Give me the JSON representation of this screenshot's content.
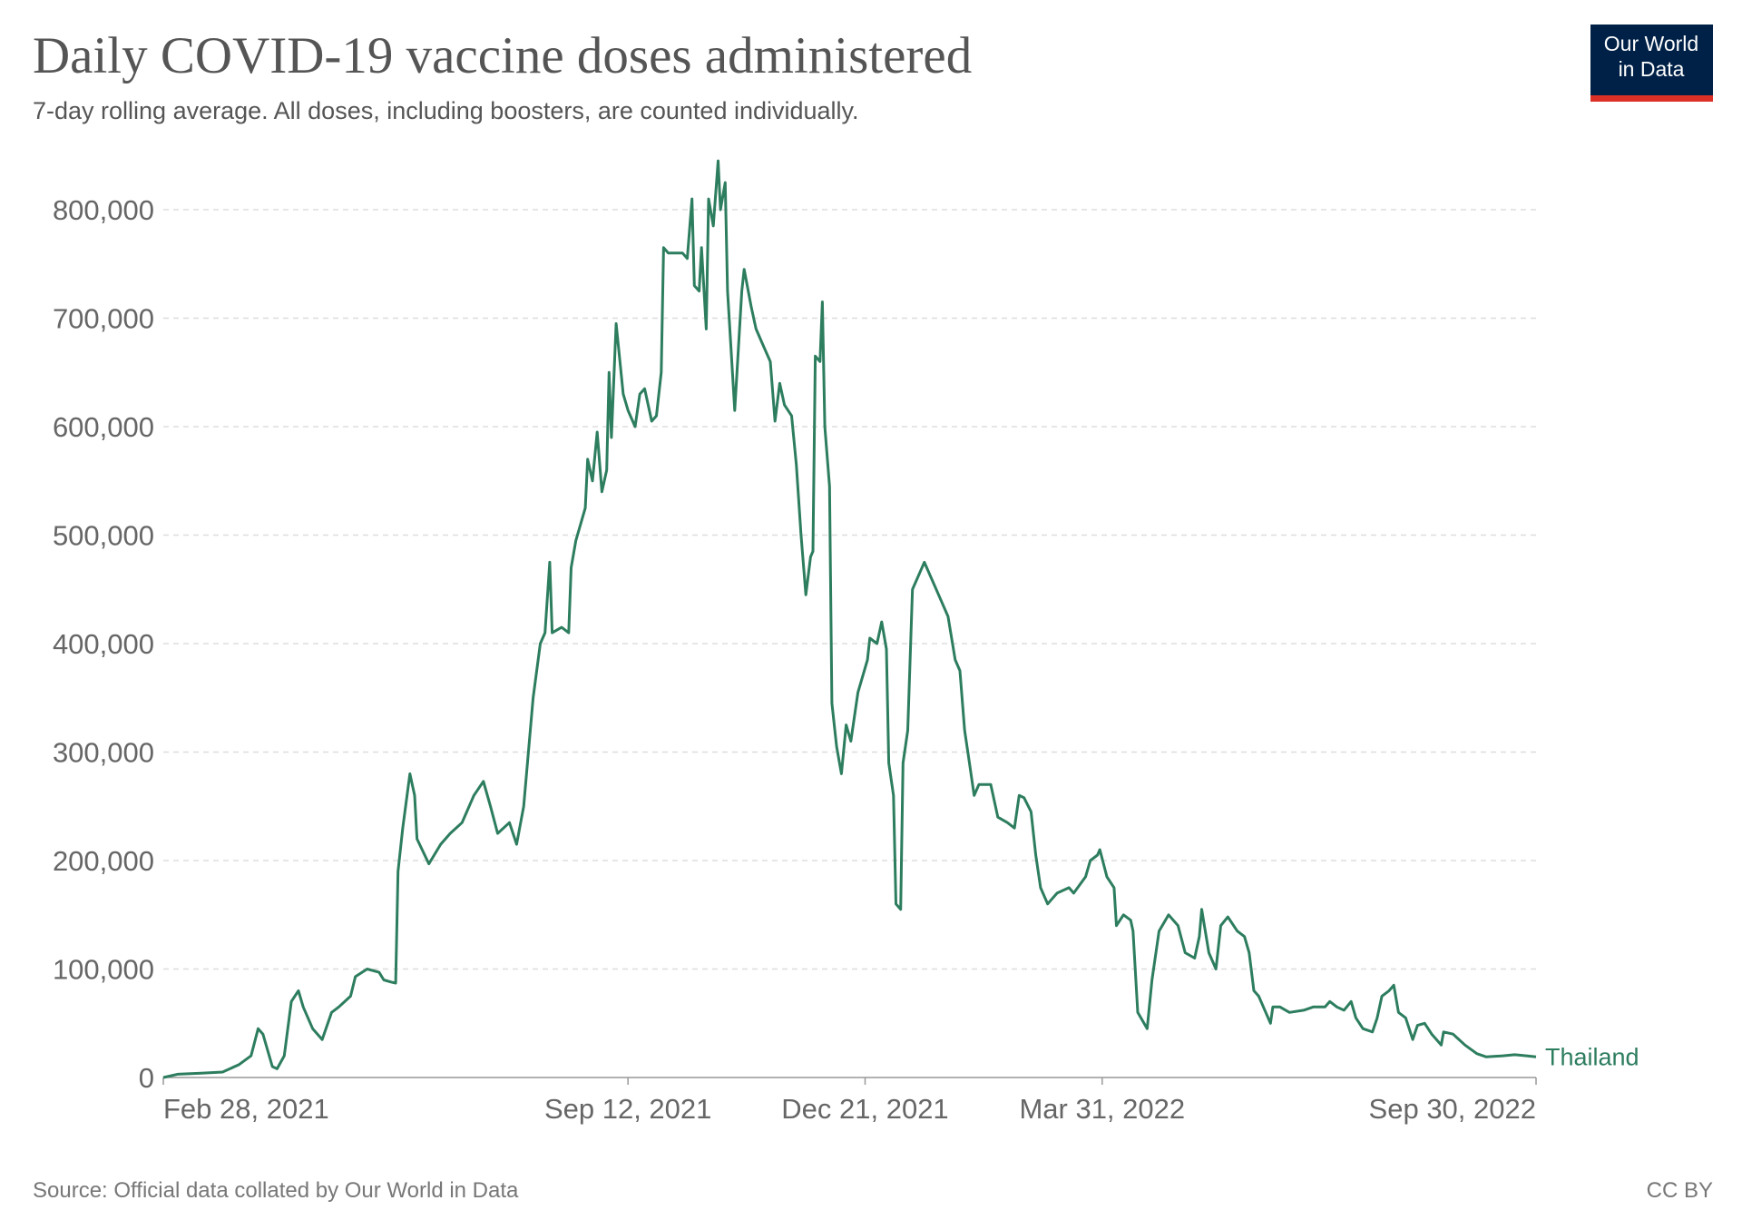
{
  "chart_data": {
    "type": "line",
    "title": "Daily COVID-19 vaccine doses administered",
    "subtitle": "7-day rolling average. All doses, including boosters, are counted individually.",
    "source": "Source: Official data collated by Our World in Data",
    "license": "CC BY",
    "logo": [
      "Our World",
      "in Data"
    ],
    "xlim": [
      "2021-02-28",
      "2022-09-30"
    ],
    "xticks": [
      {
        "value": "2021-02-28",
        "label": "Feb 28, 2021"
      },
      {
        "value": "2021-09-12",
        "label": "Sep 12, 2021"
      },
      {
        "value": "2021-12-21",
        "label": "Dec 21, 2021"
      },
      {
        "value": "2022-03-31",
        "label": "Mar 31, 2022"
      },
      {
        "value": "2022-09-30",
        "label": "Sep 30, 2022"
      }
    ],
    "ylim": [
      0,
      800000
    ],
    "yticks": [
      0,
      {
        "value": 100000,
        "label": "100,000"
      },
      {
        "value": 200000,
        "label": "200,000"
      },
      {
        "value": 300000,
        "label": "300,000"
      },
      {
        "value": 400000,
        "label": "400,000"
      },
      {
        "value": 500000,
        "label": "500,000"
      },
      {
        "value": 600000,
        "label": "600,000"
      },
      {
        "value": 700000,
        "label": "700,000"
      },
      {
        "value": 800000,
        "label": "800,000"
      }
    ],
    "grid": true,
    "x": [
      "2021-02-28",
      "2021-03-06",
      "2021-03-16",
      "2021-03-25",
      "2021-04-01",
      "2021-04-06",
      "2021-04-09",
      "2021-04-11",
      "2021-04-15",
      "2021-04-17",
      "2021-04-20",
      "2021-04-23",
      "2021-04-26",
      "2021-04-28",
      "2021-05-02",
      "2021-05-06",
      "2021-05-10",
      "2021-05-13",
      "2021-05-18",
      "2021-05-20",
      "2021-05-25",
      "2021-05-30",
      "2021-06-01",
      "2021-06-04",
      "2021-06-06",
      "2021-06-07",
      "2021-06-09",
      "2021-06-12",
      "2021-06-14",
      "2021-06-15",
      "2021-06-20",
      "2021-06-25",
      "2021-06-29",
      "2021-07-04",
      "2021-07-09",
      "2021-07-13",
      "2021-07-16",
      "2021-07-19",
      "2021-07-24",
      "2021-07-27",
      "2021-07-30",
      "2021-08-01",
      "2021-08-03",
      "2021-08-06",
      "2021-08-08",
      "2021-08-10",
      "2021-08-11",
      "2021-08-15",
      "2021-08-18",
      "2021-08-19",
      "2021-08-21",
      "2021-08-25",
      "2021-08-26",
      "2021-08-28",
      "2021-08-30",
      "2021-09-01",
      "2021-09-03",
      "2021-09-04",
      "2021-09-05",
      "2021-09-07",
      "2021-09-10",
      "2021-09-12",
      "2021-09-15",
      "2021-09-17",
      "2021-09-19",
      "2021-09-22",
      "2021-09-24",
      "2021-09-26",
      "2021-09-27",
      "2021-09-29",
      "2021-10-05",
      "2021-10-07",
      "2021-10-09",
      "2021-10-10",
      "2021-10-12",
      "2021-10-13",
      "2021-10-15",
      "2021-10-16",
      "2021-10-18",
      "2021-10-20",
      "2021-10-21",
      "2021-10-23",
      "2021-10-24",
      "2021-10-27",
      "2021-10-30",
      "2021-10-31",
      "2021-11-03",
      "2021-11-05",
      "2021-11-08",
      "2021-11-11",
      "2021-11-13",
      "2021-11-15",
      "2021-11-17",
      "2021-11-20",
      "2021-11-22",
      "2021-11-24",
      "2021-11-26",
      "2021-11-28",
      "2021-11-29",
      "2021-11-30",
      "2021-12-02",
      "2021-12-03",
      "2021-12-04",
      "2021-12-06",
      "2021-12-07",
      "2021-12-09",
      "2021-12-11",
      "2021-12-13",
      "2021-12-15",
      "2021-12-18",
      "2021-12-22",
      "2021-12-23",
      "2021-12-26",
      "2021-12-28",
      "2021-12-30",
      "2021-12-31",
      "2022-01-02",
      "2022-01-03",
      "2022-01-05",
      "2022-01-06",
      "2022-01-08",
      "2022-01-10",
      "2022-01-13",
      "2022-01-15",
      "2022-01-19",
      "2022-01-22",
      "2022-01-25",
      "2022-01-28",
      "2022-01-30",
      "2022-02-01",
      "2022-02-03",
      "2022-02-05",
      "2022-02-07",
      "2022-02-12",
      "2022-02-15",
      "2022-02-19",
      "2022-02-22",
      "2022-02-24",
      "2022-02-26",
      "2022-03-01",
      "2022-03-03",
      "2022-03-05",
      "2022-03-08",
      "2022-03-10",
      "2022-03-12",
      "2022-03-17",
      "2022-03-19",
      "2022-03-24",
      "2022-03-26",
      "2022-03-29",
      "2022-03-30",
      "2022-04-02",
      "2022-04-05",
      "2022-04-06",
      "2022-04-09",
      "2022-04-12",
      "2022-04-13",
      "2022-04-15",
      "2022-04-19",
      "2022-04-21",
      "2022-04-24",
      "2022-04-28",
      "2022-05-02",
      "2022-05-05",
      "2022-05-09",
      "2022-05-11",
      "2022-05-12",
      "2022-05-15",
      "2022-05-18",
      "2022-05-20",
      "2022-05-23",
      "2022-05-27",
      "2022-05-30",
      "2022-06-01",
      "2022-06-03",
      "2022-06-05",
      "2022-06-08",
      "2022-06-10",
      "2022-06-11",
      "2022-06-14",
      "2022-06-18",
      "2022-06-24",
      "2022-06-28",
      "2022-07-03",
      "2022-07-05",
      "2022-07-08",
      "2022-07-11",
      "2022-07-14",
      "2022-07-16",
      "2022-07-19",
      "2022-07-23",
      "2022-07-25",
      "2022-07-27",
      "2022-07-30",
      "2022-08-01",
      "2022-08-03",
      "2022-08-06",
      "2022-08-09",
      "2022-08-11",
      "2022-08-14",
      "2022-08-17",
      "2022-08-21",
      "2022-08-22",
      "2022-08-26",
      "2022-08-31",
      "2022-09-05",
      "2022-09-09",
      "2022-09-16",
      "2022-09-21",
      "2022-09-26",
      "2022-09-30"
    ],
    "series": [
      {
        "name": "Thailand",
        "color": "#2d7d5f",
        "values": [
          0,
          3000,
          4000,
          5000,
          12000,
          20000,
          45000,
          40000,
          10000,
          8000,
          20000,
          70000,
          80000,
          65000,
          45000,
          35000,
          60000,
          65000,
          75000,
          93000,
          100000,
          97000,
          90000,
          88000,
          87000,
          190000,
          230000,
          280000,
          260000,
          220000,
          197000,
          215000,
          225000,
          235000,
          260000,
          273000,
          250000,
          225000,
          235000,
          215000,
          250000,
          300000,
          350000,
          400000,
          410000,
          475000,
          410000,
          415000,
          410000,
          470000,
          495000,
          525000,
          570000,
          550000,
          595000,
          540000,
          560000,
          650000,
          590000,
          695000,
          630000,
          615000,
          600000,
          630000,
          635000,
          605000,
          610000,
          650000,
          765000,
          760000,
          760000,
          755000,
          810000,
          730000,
          725000,
          765000,
          690000,
          810000,
          785000,
          845000,
          800000,
          825000,
          725000,
          615000,
          725000,
          745000,
          710000,
          690000,
          675000,
          660000,
          605000,
          640000,
          620000,
          610000,
          565000,
          500000,
          445000,
          480000,
          485000,
          665000,
          660000,
          715000,
          600000,
          545000,
          345000,
          305000,
          280000,
          325000,
          310000,
          355000,
          385000,
          405000,
          400000,
          420000,
          395000,
          290000,
          260000,
          160000,
          155000,
          290000,
          320000,
          450000,
          465000,
          475000,
          455000,
          440000,
          425000,
          385000,
          375000,
          320000,
          290000,
          260000,
          270000,
          270000,
          240000,
          235000,
          230000,
          260000,
          258000,
          245000,
          205000,
          175000,
          160000,
          165000,
          170000,
          175000,
          170000,
          185000,
          200000,
          205000,
          210000,
          185000,
          175000,
          140000,
          150000,
          145000,
          135000,
          60000,
          45000,
          90000,
          135000,
          150000,
          140000,
          115000,
          110000,
          130000,
          155000,
          115000,
          100000,
          140000,
          148000,
          135000,
          130000,
          115000,
          80000,
          75000,
          60000,
          50000,
          65000,
          65000,
          60000,
          62000,
          65000,
          65000,
          70000,
          65000,
          62000,
          70000,
          55000,
          45000,
          42000,
          55000,
          75000,
          80000,
          85000,
          60000,
          55000,
          35000,
          48000,
          50000,
          40000,
          30000,
          42000,
          40000,
          30000,
          22000,
          19000,
          20000,
          21000,
          20000,
          19000
        ]
      }
    ]
  }
}
